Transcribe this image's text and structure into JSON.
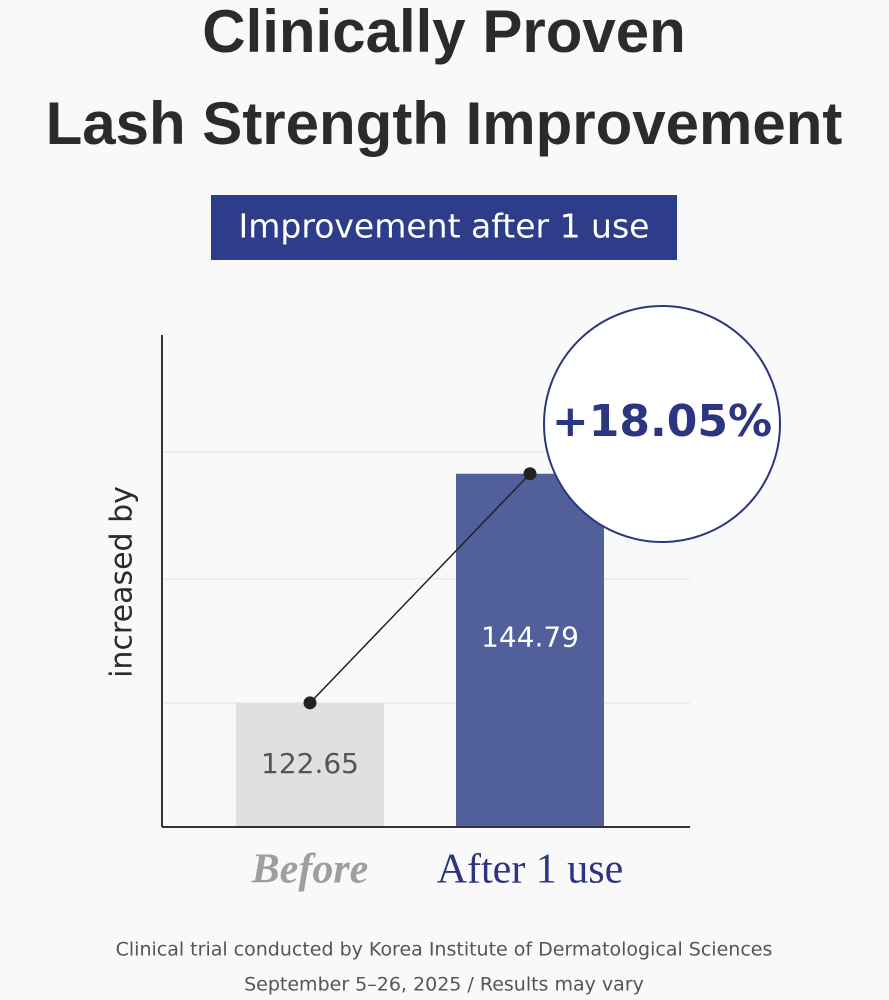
{
  "chart_data": {
    "type": "bar",
    "title": [
      "Clinically Proven",
      "Lash Strength Improvement"
    ],
    "subtitle": "Improvement after 1 use",
    "ylabel": "increased by",
    "categories": [
      "Before",
      "After 1 use"
    ],
    "values": [
      122.65,
      144.79
    ],
    "colors": [
      "#e0e0e0",
      "#515f9b"
    ],
    "label_colors": [
      "#9e9e9e",
      "#2b3580"
    ],
    "value_text_colors": [
      "#555555",
      "#ffffff"
    ],
    "ylim": [
      110.65,
      158.2
    ],
    "annotation": "+18.05%",
    "footnote": [
      "Clinical trial conducted by Korea Institute of Dermatological Sciences",
      "September 5–26, 2025 / Results may vary"
    ]
  }
}
